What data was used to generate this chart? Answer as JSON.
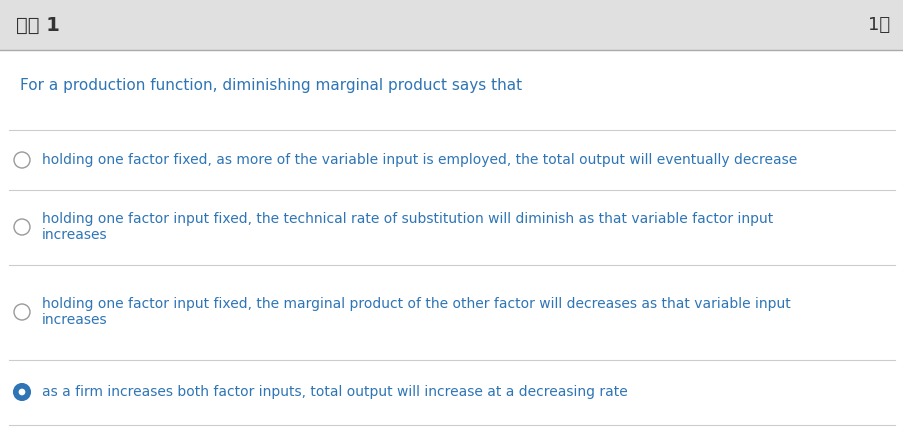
{
  "header_text": "问题 1",
  "header_right": "1分",
  "header_bg": "#e0e0e0",
  "header_text_color": "#333333",
  "body_bg": "#ffffff",
  "question_text": "For a production function, diminishing marginal product says that",
  "question_color": "#2E75B6",
  "option_color": "#2E75B6",
  "divider_color": "#cccccc",
  "options": [
    "holding one factor fixed, as more of the variable input is employed, the total output will eventually decrease",
    "holding one factor input fixed, the technical rate of substitution will diminish as that variable factor input\nincreases",
    "holding one factor input fixed, the marginal product of the other factor will decreases as that variable input\nincreases",
    "as a firm increases both factor inputs, total output will increase at a decreasing rate"
  ],
  "selected_index": 3,
  "fig_width": 9.04,
  "fig_height": 4.36,
  "dpi": 100
}
